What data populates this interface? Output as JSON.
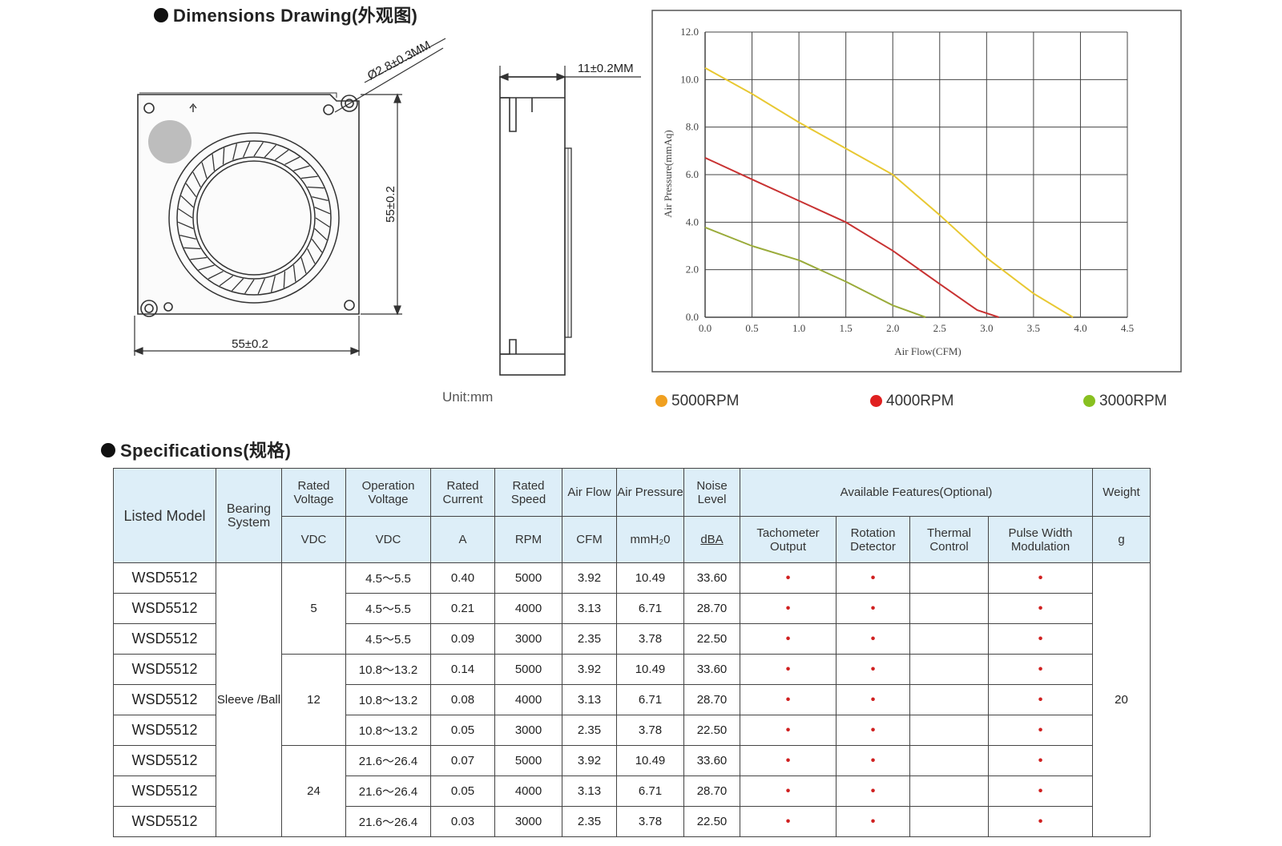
{
  "dimensions": {
    "title": "Dimensions Drawing(外观图)",
    "hole_label": "Ø2.8±0.3MM",
    "height_label": "55±0.2",
    "width_label": "55±0.2",
    "thickness_label": "11±0.2MM",
    "unit_label": "Unit:mm"
  },
  "chart_data": {
    "type": "line",
    "xlabel": "Air Flow(CFM)",
    "ylabel": "Air Pressure(mmAq)",
    "xlim": [
      0,
      4.5
    ],
    "ylim": [
      0,
      12
    ],
    "x_ticks": [
      "0.0",
      "0.5",
      "1.0",
      "1.5",
      "2.0",
      "2.5",
      "3.0",
      "3.5",
      "4.0",
      "4.5"
    ],
    "y_ticks": [
      "0.0",
      "2.0",
      "4.0",
      "6.0",
      "8.0",
      "10.0",
      "12.0"
    ],
    "grid": true,
    "legend_position": "bottom",
    "series": [
      {
        "name": "5000RPM",
        "color": "#e8c832",
        "points": [
          [
            0,
            10.49
          ],
          [
            0.5,
            9.4
          ],
          [
            1.0,
            8.2
          ],
          [
            1.5,
            7.1
          ],
          [
            2.0,
            6.0
          ],
          [
            2.5,
            4.3
          ],
          [
            3.0,
            2.5
          ],
          [
            3.5,
            1.0
          ],
          [
            3.92,
            0
          ]
        ]
      },
      {
        "name": "4000RPM",
        "color": "#c83232",
        "points": [
          [
            0,
            6.71
          ],
          [
            0.5,
            5.8
          ],
          [
            1.0,
            4.9
          ],
          [
            1.5,
            4.0
          ],
          [
            2.0,
            2.8
          ],
          [
            2.5,
            1.4
          ],
          [
            2.9,
            0.3
          ],
          [
            3.13,
            0
          ]
        ]
      },
      {
        "name": "3000RPM",
        "color": "#9aab3a",
        "points": [
          [
            0,
            3.78
          ],
          [
            0.5,
            3.0
          ],
          [
            1.0,
            2.4
          ],
          [
            1.5,
            1.5
          ],
          [
            2.0,
            0.5
          ],
          [
            2.35,
            0
          ]
        ]
      }
    ]
  },
  "legend": [
    {
      "label": "5000RPM",
      "color": "#f0a020"
    },
    {
      "label": "4000RPM",
      "color": "#e02020"
    },
    {
      "label": "3000RPM",
      "color": "#88c020"
    }
  ],
  "specs": {
    "title": "Specifications(规格)",
    "headers": {
      "listed_model": "Listed Model",
      "bearing_system": "Bearing System",
      "rated_voltage": "Rated Voltage",
      "operation_voltage": "Operation Voltage",
      "rated_current": "Rated Current",
      "rated_speed": "Rated Speed",
      "air_flow": "Air Flow",
      "air_pressure": "Air Pressure",
      "noise_level": "Noise Level",
      "available_features": "Available Features(Optional)",
      "weight": "Weight",
      "tachometer": "Tachometer Output",
      "rotation": "Rotation Detector",
      "thermal": "Thermal Control",
      "pwm": "Pulse Width Modulation"
    },
    "units": {
      "rated_voltage": "VDC",
      "operation_voltage": "VDC",
      "rated_current": "A",
      "rated_speed": "RPM",
      "air_flow": "CFM",
      "air_pressure": "mmH₂0",
      "noise_level": "dBA",
      "weight": "g"
    },
    "bearing": "Sleeve /Ball",
    "weight_value": "20",
    "feature_mark": "•",
    "voltage_groups": [
      "5",
      "12",
      "24"
    ],
    "rows": [
      {
        "model": "WSD5512",
        "op": "4.5～5.5",
        "current": "0.40",
        "speed": "5000",
        "flow": "3.92",
        "pressure": "10.49",
        "noise": "33.60"
      },
      {
        "model": "WSD5512",
        "op": "4.5～5.5",
        "current": "0.21",
        "speed": "4000",
        "flow": "3.13",
        "pressure": "6.71",
        "noise": "28.70"
      },
      {
        "model": "WSD5512",
        "op": "4.5～5.5",
        "current": "0.09",
        "speed": "3000",
        "flow": "2.35",
        "pressure": "3.78",
        "noise": "22.50"
      },
      {
        "model": "WSD5512",
        "op": "10.8～13.2",
        "current": "0.14",
        "speed": "5000",
        "flow": "3.92",
        "pressure": "10.49",
        "noise": "33.60"
      },
      {
        "model": "WSD5512",
        "op": "10.8～13.2",
        "current": "0.08",
        "speed": "4000",
        "flow": "3.13",
        "pressure": "6.71",
        "noise": "28.70"
      },
      {
        "model": "WSD5512",
        "op": "10.8～13.2",
        "current": "0.05",
        "speed": "3000",
        "flow": "2.35",
        "pressure": "3.78",
        "noise": "22.50"
      },
      {
        "model": "WSD5512",
        "op": "21.6～26.4",
        "current": "0.07",
        "speed": "5000",
        "flow": "3.92",
        "pressure": "10.49",
        "noise": "33.60"
      },
      {
        "model": "WSD5512",
        "op": "21.6～26.4",
        "current": "0.05",
        "speed": "4000",
        "flow": "3.13",
        "pressure": "6.71",
        "noise": "28.70"
      },
      {
        "model": "WSD5512",
        "op": "21.6～26.4",
        "current": "0.03",
        "speed": "3000",
        "flow": "2.35",
        "pressure": "3.78",
        "noise": "22.50"
      }
    ]
  }
}
